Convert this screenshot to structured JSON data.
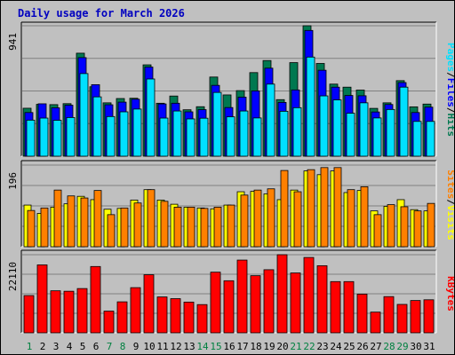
{
  "title": "Daily usage for March 2026",
  "colors": {
    "hits": "#007850",
    "files": "#0000ff",
    "pages": "#00e0ff",
    "visits": "#ffff00",
    "sites": "#ff8000",
    "kbytes": "#ff0000",
    "title": "#0000c0",
    "weekend": "#008040",
    "weekday": "#000000",
    "plot_bg": "#c0c0c0",
    "gridline": "#808080"
  },
  "chart_data": [
    {
      "type": "bar",
      "panel": "top",
      "legend_order": [
        "Pages",
        "Files",
        "Hits"
      ],
      "scale_label": "941",
      "ylim": [
        0,
        941
      ],
      "categories": [
        "1",
        "2",
        "3",
        "4",
        "5",
        "6",
        "7",
        "8",
        "9",
        "10",
        "11",
        "12",
        "13",
        "14",
        "15",
        "16",
        "17",
        "18",
        "19",
        "20",
        "21",
        "22",
        "23",
        "24",
        "25",
        "26",
        "27",
        "28",
        "29",
        "30",
        "31"
      ],
      "series": [
        {
          "name": "Hits",
          "values": [
            346,
            374,
            372,
            379,
            743,
            501,
            385,
            416,
            418,
            659,
            382,
            434,
            335,
            357,
            571,
            442,
            473,
            603,
            690,
            408,
            675,
            941,
            669,
            520,
            498,
            477,
            345,
            385,
            545,
            356,
            376
          ]
        },
        {
          "name": "Files",
          "values": [
            315,
            378,
            349,
            368,
            711,
            516,
            371,
            390,
            411,
            643,
            377,
            382,
            320,
            336,
            511,
            351,
            426,
            471,
            635,
            388,
            478,
            907,
            620,
            498,
            438,
            436,
            319,
            373,
            531,
            315,
            354
          ]
        },
        {
          "name": "Pages",
          "values": [
            260,
            275,
            259,
            279,
            596,
            428,
            286,
            320,
            340,
            557,
            275,
            326,
            269,
            274,
            460,
            284,
            326,
            276,
            520,
            324,
            350,
            715,
            435,
            406,
            310,
            385,
            276,
            337,
            498,
            251,
            251
          ]
        }
      ]
    },
    {
      "type": "bar",
      "panel": "middle",
      "legend_order": [
        "Sites",
        "Visits"
      ],
      "scale_label": "196",
      "ylim": [
        0,
        196
      ],
      "categories": [
        "1",
        "2",
        "3",
        "4",
        "5",
        "6",
        "7",
        "8",
        "9",
        "10",
        "11",
        "12",
        "13",
        "14",
        "15",
        "16",
        "17",
        "18",
        "19",
        "20",
        "21",
        "22",
        "23",
        "24",
        "25",
        "26",
        "27",
        "28",
        "29",
        "30",
        "31"
      ],
      "series": [
        {
          "name": "Visits",
          "values": [
            100,
            80,
            95,
            103,
            121,
            113,
            90,
            92,
            112,
            137,
            112,
            102,
            95,
            93,
            91,
            100,
            132,
            133,
            127,
            113,
            136,
            182,
            173,
            182,
            130,
            135,
            86,
            97,
            113,
            89,
            86
          ]
        },
        {
          "name": "Sites",
          "values": [
            87,
            93,
            136,
            122,
            117,
            135,
            77,
            93,
            105,
            137,
            109,
            95,
            95,
            92,
            95,
            100,
            124,
            136,
            139,
            183,
            132,
            185,
            190,
            190,
            137,
            144,
            77,
            101,
            96,
            86,
            104
          ]
        }
      ]
    },
    {
      "type": "bar",
      "panel": "bottom",
      "legend_order": [
        "KBytes"
      ],
      "scale_label": "22110",
      "ylim": [
        0,
        22110
      ],
      "categories": [
        "1",
        "2",
        "3",
        "4",
        "5",
        "6",
        "7",
        "8",
        "9",
        "10",
        "11",
        "12",
        "13",
        "14",
        "15",
        "16",
        "17",
        "18",
        "19",
        "20",
        "21",
        "22",
        "23",
        "24",
        "25",
        "26",
        "27",
        "28",
        "29",
        "30",
        "31"
      ],
      "series": [
        {
          "name": "KBytes",
          "values": [
            10550,
            19230,
            11900,
            11770,
            12530,
            18770,
            6140,
            8770,
            12790,
            16440,
            10160,
            9670,
            8700,
            7990,
            17170,
            14740,
            20590,
            16170,
            17860,
            22110,
            16950,
            21330,
            19000,
            14500,
            14500,
            10960,
            5860,
            10250,
            8040,
            9140,
            9350
          ]
        }
      ]
    }
  ],
  "x_axis": {
    "labels": [
      "1",
      "2",
      "3",
      "4",
      "5",
      "6",
      "7",
      "8",
      "9",
      "10",
      "11",
      "12",
      "13",
      "14",
      "15",
      "16",
      "17",
      "18",
      "19",
      "20",
      "21",
      "22",
      "23",
      "24",
      "25",
      "26",
      "27",
      "28",
      "29",
      "30",
      "31"
    ],
    "weekend_days": [
      1,
      7,
      8,
      14,
      15,
      21,
      22,
      28,
      29
    ]
  }
}
